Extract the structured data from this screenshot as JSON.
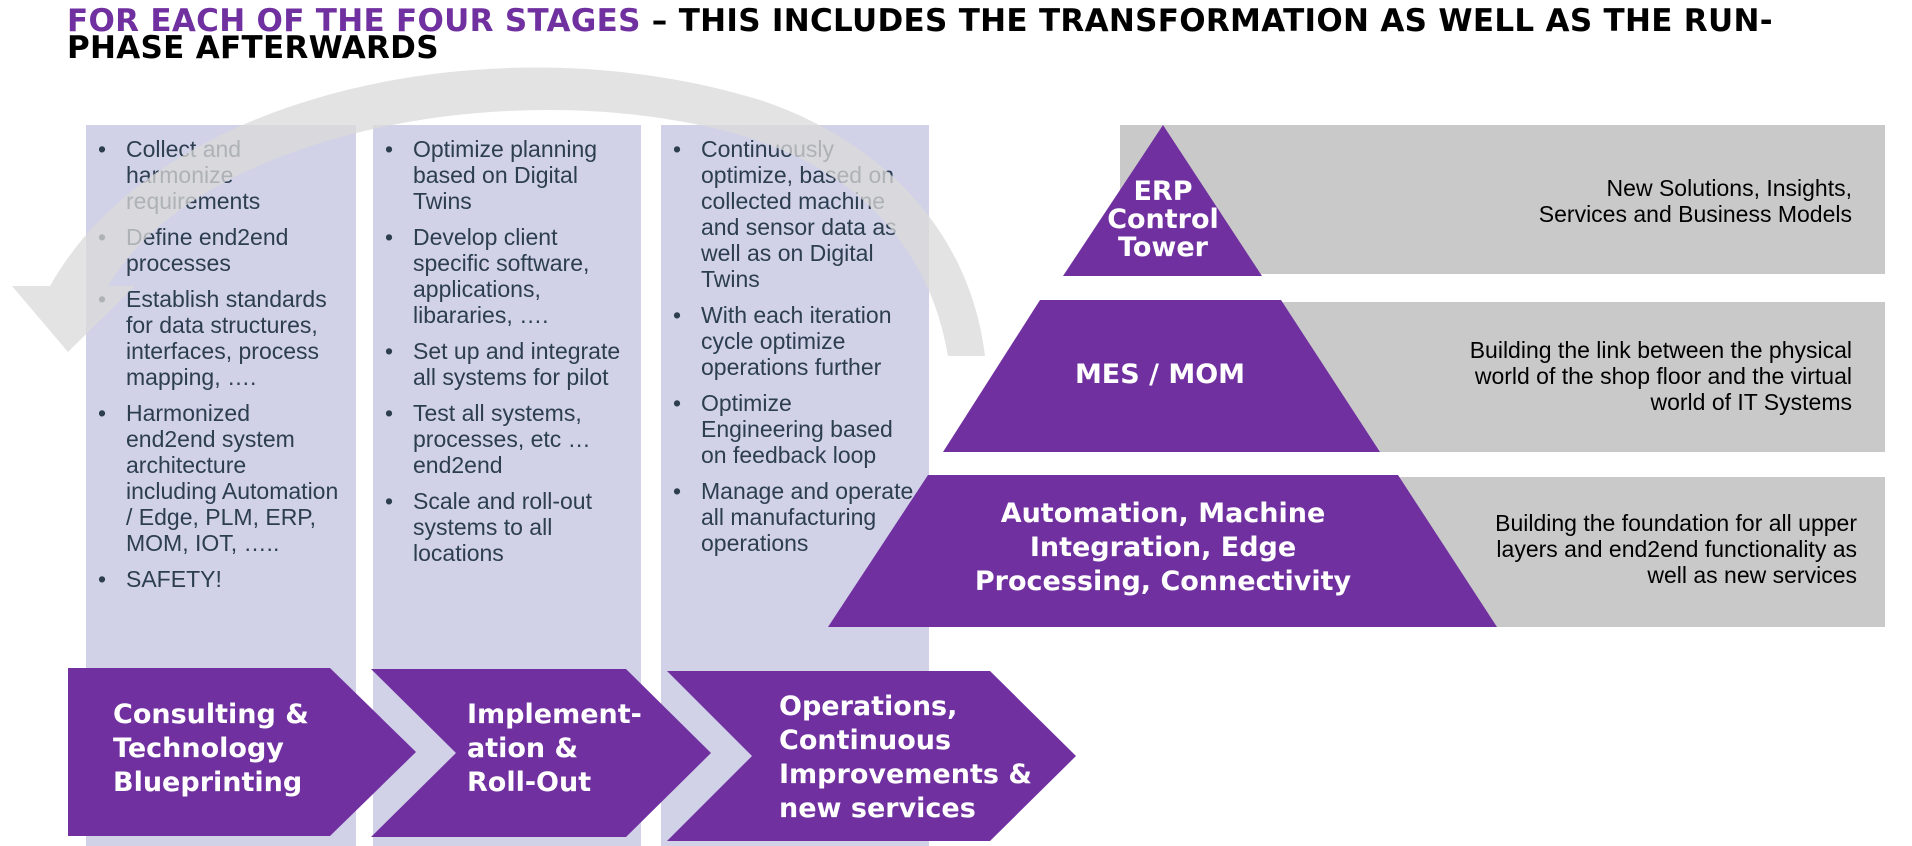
{
  "title": {
    "accent": "FOR EACH OF THE FOUR STAGES",
    "rest": " – THIS INCLUDES THE TRANSFORMATION AS WELL AS THE RUN-PHASE AFTERWARDS"
  },
  "columns": [
    {
      "items": [
        "Collect and harmonize requirements",
        "Define end2end processes",
        "Establish standards for data structures, interfaces, process mapping, ….",
        "Harmonized end2end system architecture including Automation / Edge, PLM, ERP, MOM, IOT, …..",
        "SAFETY!"
      ]
    },
    {
      "items": [
        "Optimize planning based on Digital Twins",
        "Develop client specific software, applications, libararies, ….",
        "Set up and integrate all systems for pilot",
        "Test all systems, processes, etc … end2end",
        "Scale and roll-out systems to all locations"
      ]
    },
    {
      "items": [
        "Continuously optimize, based on collected machine and sensor data as well as on Digital Twins",
        "With each iteration cycle optimize operations further",
        "Optimize Engineering based on feedback loop",
        "Manage and operate all manufacturing operations"
      ]
    }
  ],
  "stages": [
    {
      "lines": [
        "Consulting &",
        "Technology",
        "Blueprinting"
      ]
    },
    {
      "lines": [
        "Implement-",
        "ation &",
        "Roll-Out"
      ]
    },
    {
      "lines": [
        "Operations,",
        "Continuous",
        "Improvements &",
        "new services"
      ]
    }
  ],
  "pyramid": [
    {
      "label_lines": [
        "ERP",
        "Control",
        "Tower"
      ],
      "description_lines": [
        "New Solutions, Insights,",
        "Services and Business Models"
      ]
    },
    {
      "label_lines": [
        "MES / MOM"
      ],
      "description_lines": [
        "Building the link between the physical",
        "world of the shop floor and the virtual",
        "world of IT Systems"
      ]
    },
    {
      "label_lines": [
        "Automation, Machine",
        "Integration, Edge",
        "Processing, Connectivity"
      ],
      "description_lines": [
        "Building the foundation for all upper",
        "layers and end2end functionality as",
        "well as new services"
      ]
    }
  ],
  "colors": {
    "purple": "#7030a0",
    "column_bg": "#d1d1e8",
    "tier_bg": "#c9c9c9",
    "arrow": "#d9d9d9"
  }
}
